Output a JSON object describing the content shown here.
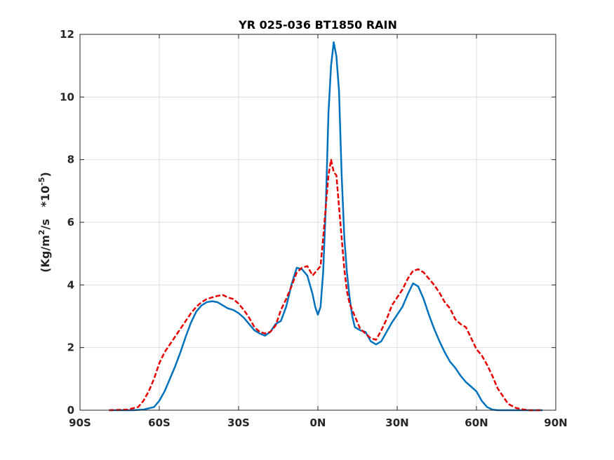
{
  "chart_data": {
    "type": "line",
    "title": "YR 025-036 BT1850 RAIN",
    "xlabel": "",
    "ylabel": {
      "prefix": "(Kg/m",
      "sup1": "2",
      "mid": "/s   *10",
      "sup2": "-5",
      "suffix": ")"
    },
    "xlim": [
      -90,
      90
    ],
    "ylim": [
      0,
      12
    ],
    "x_ticks": [
      -90,
      -60,
      -30,
      0,
      30,
      60,
      90
    ],
    "x_tick_labels": [
      "90S",
      "60S",
      "30S",
      "0N",
      "30N",
      "60N",
      "90N"
    ],
    "y_ticks": [
      0,
      2,
      4,
      6,
      8,
      10,
      12
    ],
    "y_tick_labels": [
      "0",
      "2",
      "4",
      "6",
      "8",
      "10",
      "12"
    ],
    "grid": true,
    "legend": "none",
    "series": [
      {
        "color": "#0072bd",
        "style": "solid",
        "x": [
          -79,
          -70,
          -66,
          -62,
          -60,
          -58,
          -56,
          -54,
          -52,
          -50,
          -48,
          -46,
          -44,
          -42,
          -40,
          -38,
          -36,
          -34,
          -32,
          -30,
          -28,
          -26,
          -24,
          -22,
          -20,
          -18,
          -16,
          -14,
          -12,
          -10,
          -8,
          -6,
          -4,
          -2,
          -1,
          0,
          1,
          2,
          3,
          4,
          5,
          6,
          7,
          8,
          9,
          10,
          11,
          12,
          13,
          14,
          16,
          18,
          20,
          22,
          24,
          26,
          28,
          30,
          32,
          34,
          36,
          38,
          40,
          42,
          44,
          46,
          48,
          50,
          52,
          54,
          56,
          58,
          60,
          62,
          64,
          66,
          68,
          70,
          72,
          75,
          80,
          85
        ],
        "y": [
          0,
          0,
          0.02,
          0.1,
          0.3,
          0.6,
          1.0,
          1.4,
          1.85,
          2.35,
          2.8,
          3.15,
          3.35,
          3.45,
          3.48,
          3.45,
          3.35,
          3.25,
          3.2,
          3.1,
          2.95,
          2.75,
          2.55,
          2.45,
          2.38,
          2.5,
          2.75,
          2.85,
          3.3,
          4.0,
          4.55,
          4.5,
          4.3,
          3.7,
          3.3,
          3.05,
          3.3,
          4.4,
          6.5,
          9.5,
          11.0,
          11.75,
          11.3,
          10.2,
          7.5,
          5.5,
          4.4,
          3.6,
          3.0,
          2.65,
          2.55,
          2.5,
          2.2,
          2.1,
          2.2,
          2.5,
          2.8,
          3.05,
          3.3,
          3.7,
          4.05,
          3.95,
          3.55,
          3.05,
          2.6,
          2.2,
          1.85,
          1.55,
          1.35,
          1.1,
          0.9,
          0.75,
          0.6,
          0.3,
          0.1,
          0.02,
          0,
          0,
          0,
          0,
          0,
          0
        ]
      },
      {
        "color": "#e60000",
        "style": "dashed",
        "x": [
          -79,
          -72,
          -68,
          -66,
          -64,
          -62,
          -60,
          -58,
          -56,
          -54,
          -52,
          -50,
          -48,
          -46,
          -44,
          -42,
          -40,
          -38,
          -36,
          -34,
          -32,
          -30,
          -28,
          -26,
          -24,
          -22,
          -20,
          -18,
          -16,
          -14,
          -12,
          -10,
          -8,
          -6,
          -4,
          -2,
          0,
          1,
          2,
          3,
          4,
          5,
          6,
          7,
          8,
          9,
          10,
          11,
          12,
          13,
          14,
          16,
          18,
          20,
          22,
          24,
          26,
          28,
          30,
          32,
          34,
          36,
          38,
          40,
          42,
          44,
          46,
          48,
          50,
          52,
          54,
          56,
          58,
          60,
          62,
          64,
          66,
          68,
          70,
          72,
          75,
          78,
          80,
          85
        ],
        "y": [
          0,
          0.02,
          0.1,
          0.3,
          0.6,
          1.0,
          1.5,
          1.85,
          2.1,
          2.35,
          2.6,
          2.85,
          3.1,
          3.3,
          3.45,
          3.55,
          3.6,
          3.65,
          3.68,
          3.6,
          3.55,
          3.4,
          3.2,
          2.95,
          2.65,
          2.5,
          2.45,
          2.5,
          2.7,
          3.2,
          3.55,
          3.95,
          4.4,
          4.55,
          4.6,
          4.3,
          4.5,
          4.6,
          5.5,
          6.5,
          7.5,
          8.0,
          7.6,
          7.5,
          6.5,
          5.5,
          4.5,
          3.8,
          3.4,
          3.2,
          3.0,
          2.6,
          2.45,
          2.3,
          2.25,
          2.55,
          2.9,
          3.35,
          3.6,
          3.85,
          4.2,
          4.45,
          4.5,
          4.4,
          4.2,
          4.0,
          3.75,
          3.45,
          3.25,
          2.9,
          2.75,
          2.65,
          2.3,
          1.95,
          1.75,
          1.45,
          1.1,
          0.7,
          0.45,
          0.2,
          0.07,
          0.02,
          0,
          0
        ]
      }
    ]
  }
}
